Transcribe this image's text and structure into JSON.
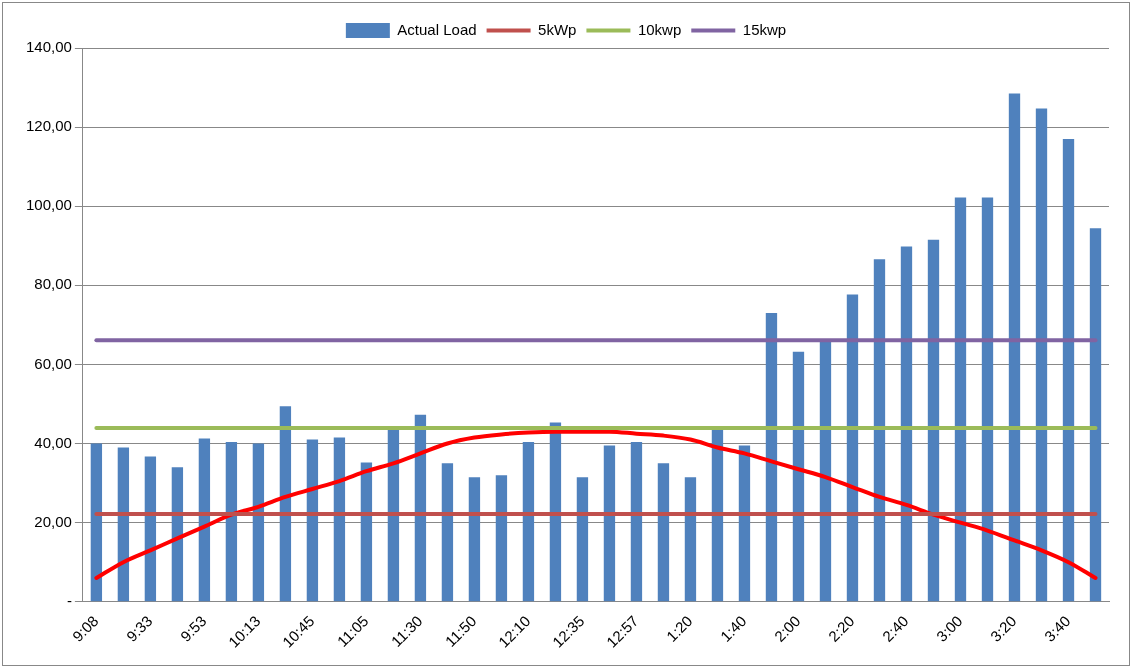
{
  "chart_data": {
    "type": "bar",
    "categories": [
      "9:08",
      null,
      "9:33",
      null,
      "9:53",
      null,
      "10:13",
      null,
      "10:45",
      null,
      "11:05",
      null,
      "11:30",
      null,
      "11:50",
      null,
      "12:10",
      null,
      "12:35",
      null,
      "12:57",
      null,
      "1:20",
      null,
      "1:40",
      null,
      "2:00",
      null,
      "2:20",
      null,
      "2:40",
      null,
      "3:00",
      null,
      "3:20",
      null,
      "3:40",
      null
    ],
    "series": [
      {
        "name": "Actual Load",
        "type": "bar",
        "color": "#4f81bd",
        "values": [
          40,
          39,
          36.7,
          34,
          41.3,
          40.4,
          40,
          49.4,
          41,
          41.5,
          35.2,
          43.9,
          47.3,
          35,
          31.5,
          32,
          40.4,
          45.3,
          31.5,
          39.5,
          40.4,
          35,
          31.5,
          43.9,
          39.5,
          73,
          63.2,
          66,
          77.7,
          86.6,
          89.8,
          91.5,
          102.2,
          102.2,
          128.5,
          124.7,
          117,
          94.4
        ]
      },
      {
        "name": "5kWp",
        "type": "line",
        "color": "#c0504d",
        "values": [
          22.2,
          22.2,
          22.2,
          22.2,
          22.2,
          22.2,
          22.2,
          22.2,
          22.2,
          22.2,
          22.2,
          22.2,
          22.2,
          22.2,
          22.2,
          22.2,
          22.2,
          22.2,
          22.2,
          22.2,
          22.2,
          22.2,
          22.2,
          22.2,
          22.2,
          22.2,
          22.2,
          22.2,
          22.2,
          22.2,
          22.2,
          22.2,
          22.2,
          22.2,
          22.2,
          22.2,
          22.2,
          22.2
        ]
      },
      {
        "name": "10kwp",
        "type": "line",
        "color": "#9bbb59",
        "values": [
          43.9,
          43.9,
          43.9,
          43.9,
          43.9,
          43.9,
          43.9,
          43.9,
          43.9,
          43.9,
          43.9,
          43.9,
          43.9,
          43.9,
          43.9,
          43.9,
          43.9,
          43.9,
          43.9,
          43.9,
          43.9,
          43.9,
          43.9,
          43.9,
          43.9,
          43.9,
          43.9,
          43.9,
          43.9,
          43.9,
          43.9,
          43.9,
          43.9,
          43.9,
          43.9,
          43.9,
          43.9,
          43.9
        ]
      },
      {
        "name": "15kwp",
        "type": "line",
        "color": "#8064a2",
        "values": [
          66.1,
          66.1,
          66.1,
          66.1,
          66.1,
          66.1,
          66.1,
          66.1,
          66.1,
          66.1,
          66.1,
          66.1,
          66.1,
          66.1,
          66.1,
          66.1,
          66.1,
          66.1,
          66.1,
          66.1,
          66.1,
          66.1,
          66.1,
          66.1,
          66.1,
          66.1,
          66.1,
          66.1,
          66.1,
          66.1,
          66.1,
          66.1,
          66.1,
          66.1,
          66.1,
          66.1,
          66.1,
          66.1
        ]
      },
      {
        "type": "line",
        "color": "#ff0000",
        "values": [
          6,
          10,
          13,
          16,
          19,
          22,
          24,
          26.5,
          28.5,
          30.5,
          33,
          35,
          37.5,
          40,
          41.5,
          42.3,
          42.8,
          43,
          43,
          43,
          42.5,
          42,
          41,
          39,
          37.5,
          35.5,
          33.5,
          31.5,
          29,
          26.5,
          24.5,
          22,
          20,
          18,
          15.5,
          13,
          10,
          6
        ]
      }
    ],
    "ylim": [
      0,
      140
    ],
    "yticks": [
      {
        "value": 0,
        "label": "-"
      },
      {
        "value": 20,
        "label": "20,00"
      },
      {
        "value": 40,
        "label": "40,00"
      },
      {
        "value": 60,
        "label": "60,00"
      },
      {
        "value": 80,
        "label": "80,00"
      },
      {
        "value": 100,
        "label": "100,00"
      },
      {
        "value": 120,
        "label": "120,00"
      },
      {
        "value": 140,
        "label": "140,00"
      }
    ],
    "grid": "y",
    "legend": "top",
    "line_style": "solid"
  }
}
